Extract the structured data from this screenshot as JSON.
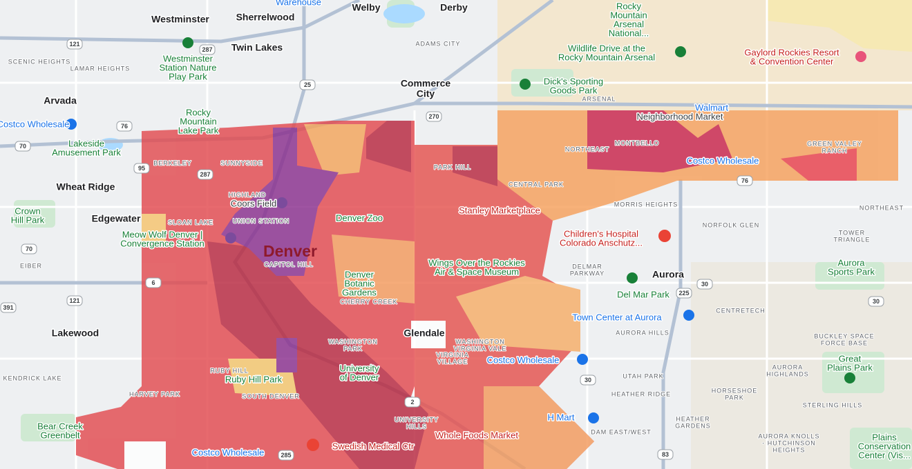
{
  "places": [
    [
      "Denver"
    ],
    [
      "Aurora"
    ],
    [
      "Lakewood"
    ],
    [
      "Arvada"
    ],
    [
      "Wheat Ridge"
    ],
    [
      "Edgewater"
    ],
    [
      "Commerce",
      "City"
    ],
    [
      "Glendale"
    ],
    [
      "Westminster"
    ],
    [
      "Sherrelwood"
    ],
    [
      "Welby"
    ],
    [
      "Derby"
    ],
    [
      "Twin Lakes"
    ]
  ],
  "parks": [
    [
      "Rocky",
      "Mountain",
      "Arsenal",
      "National..."
    ],
    [
      "Wildlife Drive at the",
      "Rocky Mountain Arsenal"
    ],
    [
      "Dick's Sporting",
      "Goods Park"
    ],
    [
      "Westminster",
      "Station Nature",
      "Play Park"
    ],
    [
      "Rocky",
      "Mountain",
      "Lake Park"
    ],
    [
      "Lakeside",
      "Amusement Park"
    ],
    [
      "Crown",
      "Hill Park"
    ],
    [
      "Del Mar Park"
    ],
    [
      "Aurora",
      "Sports Park"
    ],
    [
      "Great",
      "Plains Park"
    ],
    [
      "Bear Creek",
      "Greenbelt"
    ],
    [
      "Meow Wolf Denver |",
      "Convergence Station"
    ],
    [
      "Denver Zoo"
    ],
    [
      "Denver",
      "Botanic",
      "Gardens"
    ],
    [
      "Ruby Hill Park"
    ],
    [
      "University",
      "of Denver"
    ],
    [
      "Wings Over the Rockies",
      "Air & Space Museum"
    ],
    [
      "Plains",
      "Conservation",
      "Center (Vis..."
    ]
  ],
  "neighborhoods": [
    [
      "SCENIC HEIGHTS"
    ],
    [
      "LAMAR HEIGHTS"
    ],
    [
      "ADAMS CITY"
    ],
    [
      "ARSENAL"
    ],
    [
      "NORTHEAST"
    ],
    [
      "MONTBELLO"
    ],
    [
      "GREEN VALLEY",
      "RANCH"
    ],
    [
      "PARK HILL"
    ],
    [
      "CENTRAL PARK"
    ],
    [
      "MORRIS HEIGHTS"
    ],
    [
      "NORFOLK GLEN"
    ],
    [
      "NORTHEAST"
    ],
    [
      "TOWER",
      "TRIANGLE"
    ],
    [
      "DELMAR",
      "PARKWAY"
    ],
    [
      "CENTRETECH"
    ],
    [
      "AURORA HILLS"
    ],
    [
      "BUCKLEY SPACE",
      "FORCE BASE"
    ],
    [
      "AURORA",
      "HIGHLANDS"
    ],
    [
      "HORSESHOE",
      "PARK"
    ],
    [
      "UTAH PARK"
    ],
    [
      "HEATHER RIDGE"
    ],
    [
      "HEATHER",
      "GARDENS"
    ],
    [
      "DAM EAST/WEST"
    ],
    [
      "AURORA KNOLLS",
      "- HUTCHINSON",
      "HEIGHTS"
    ],
    [
      "STERLING HILLS"
    ],
    [
      "BERKELEY"
    ],
    [
      "SUNNYSIDE"
    ],
    [
      "HIGHLAND"
    ],
    [
      "UNION STATION"
    ],
    [
      "SLOAN LAKE"
    ],
    [
      "CAPITOL HILL"
    ],
    [
      "CHERRY CREEK"
    ],
    [
      "WASHINGTON",
      "PARK"
    ],
    [
      "WASHINGTON",
      "VIRGINIA VALE"
    ],
    [
      "VIRGINIA",
      "VILLAGE"
    ],
    [
      "RUBY HILL"
    ],
    [
      "HARVEY PARK"
    ],
    [
      "SOUTH DENVER"
    ],
    [
      "UNIVERSITY",
      "HILLS"
    ],
    [
      "KENDRICK LAKE"
    ],
    [
      "EIBER"
    ]
  ],
  "businesses": [
    [
      "Walmart"
    ],
    [
      "Neighborhood Market"
    ],
    [
      "Costco Wholesale"
    ],
    [
      "Costco Wholesale"
    ],
    [
      "Gaylord Rockies Resort",
      "& Convention Center"
    ],
    [
      "Stanley Marketplace"
    ],
    [
      "Children's Hospital",
      "Colorado Anschutz..."
    ],
    [
      "Town Center at Aurora"
    ],
    [
      "Costco Wholesale"
    ],
    [
      "H Mart"
    ],
    [
      "Whole Foods Market"
    ],
    [
      "Swedish Medical Ctr"
    ],
    [
      "Costco Wholesale"
    ],
    [
      "Coors Field"
    ],
    [
      "Warehouse"
    ]
  ],
  "highways": [
    "121",
    "287",
    "76",
    "70",
    "25",
    "270",
    "95",
    "287",
    "70",
    "121",
    "391",
    "6",
    "30",
    "225",
    "30",
    "83",
    "285",
    "2",
    "76",
    "30"
  ]
}
